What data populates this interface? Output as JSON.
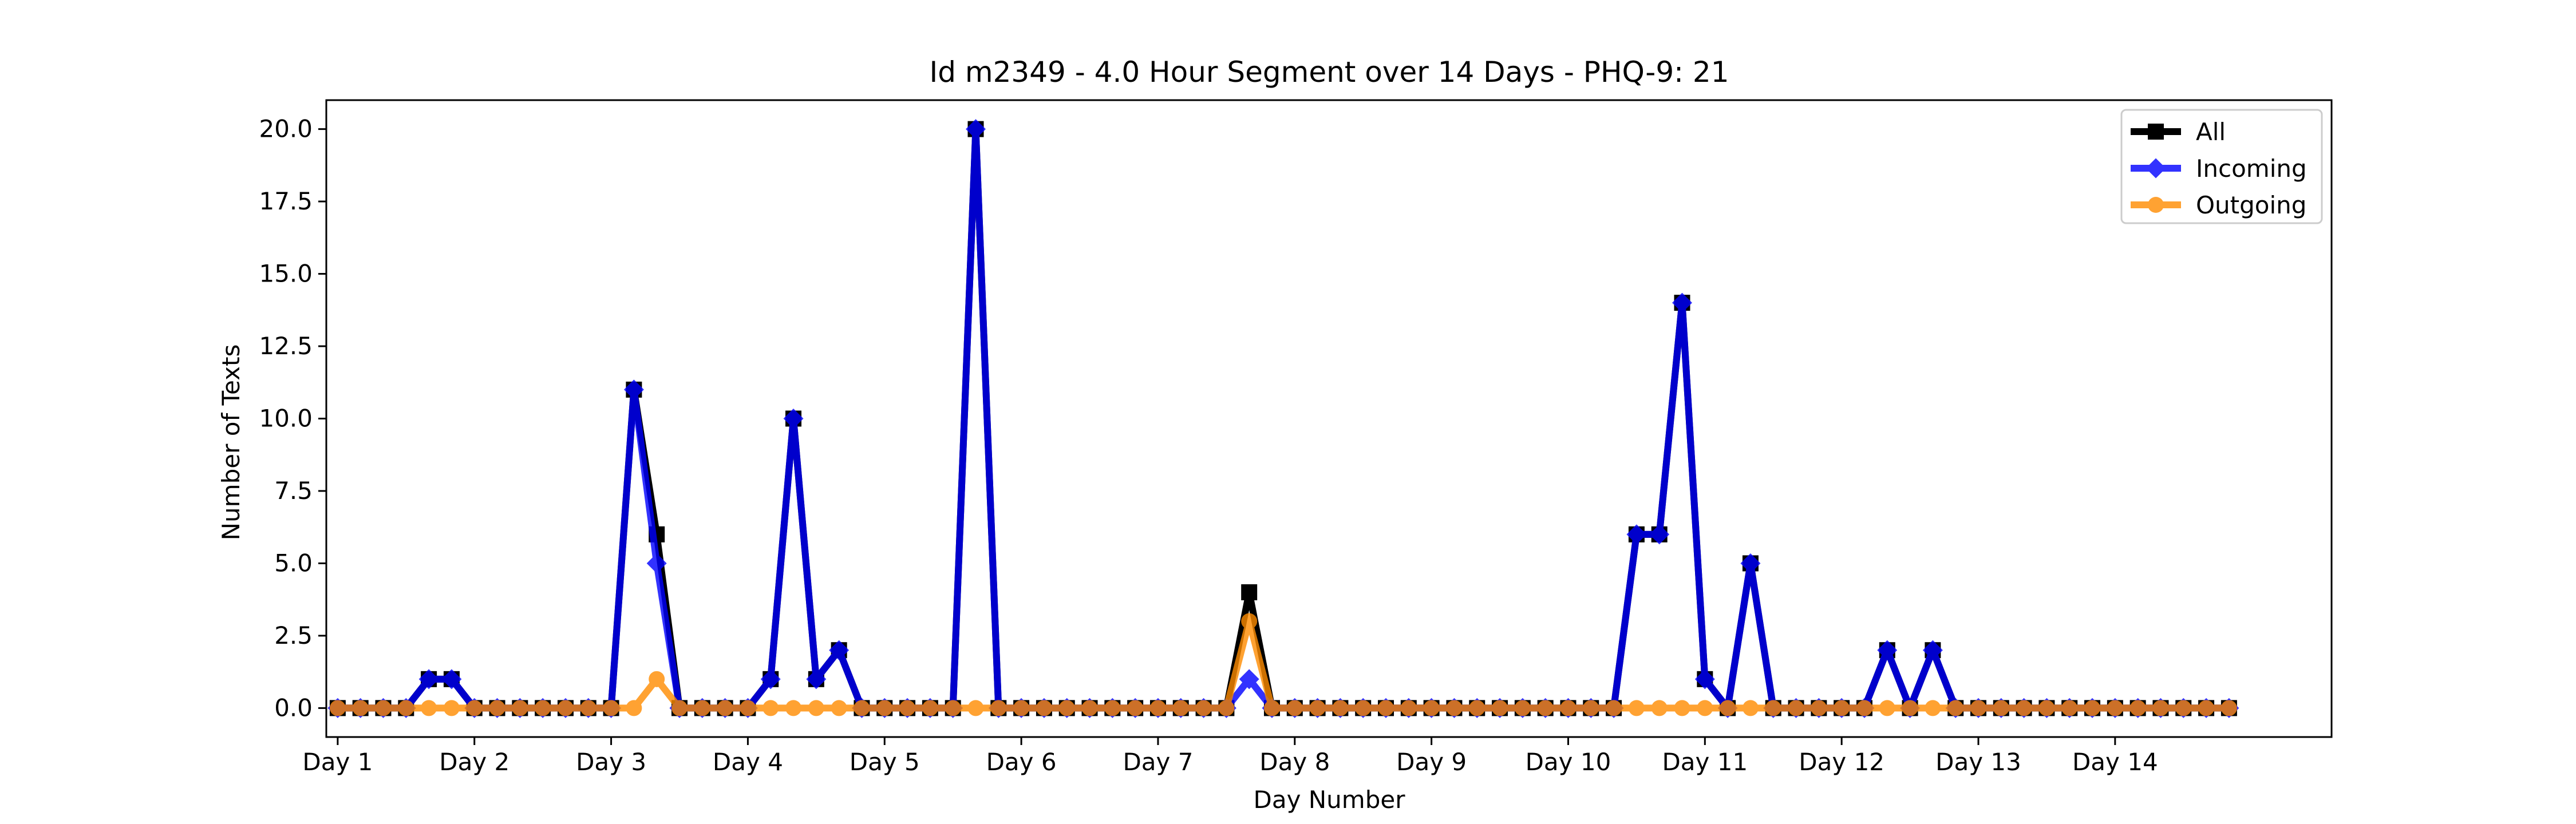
{
  "chart_data": {
    "type": "line",
    "title": "Id m2349 - 4.0 Hour Segment over 14 Days - PHQ-9: 21",
    "xlabel": "Day Number",
    "ylabel": "Number of Texts",
    "xlim": [
      -0.5,
      87.5
    ],
    "ylim": [
      -1.0,
      21.0
    ],
    "yticks": [
      "0.0",
      "2.5",
      "5.0",
      "7.5",
      "10.0",
      "12.5",
      "15.0",
      "17.5",
      "20.0"
    ],
    "ytick_values": [
      0,
      2.5,
      5,
      7.5,
      10,
      12.5,
      15,
      17.5,
      20
    ],
    "xtick_labels": [
      "Day 1",
      "Day 2",
      "Day 3",
      "Day 4",
      "Day 5",
      "Day 6",
      "Day 7",
      "Day 8",
      "Day 9",
      "Day 10",
      "Day 11",
      "Day 12",
      "Day 13",
      "Day 14"
    ],
    "xtick_values": [
      0,
      6,
      12,
      18,
      24,
      30,
      36,
      42,
      48,
      54,
      60,
      66,
      72,
      78
    ],
    "x": [
      0,
      1,
      2,
      3,
      4,
      5,
      6,
      7,
      8,
      9,
      10,
      11,
      12,
      13,
      14,
      15,
      16,
      17,
      18,
      19,
      20,
      21,
      22,
      23,
      24,
      25,
      26,
      27,
      28,
      29,
      30,
      31,
      32,
      33,
      34,
      35,
      36,
      37,
      38,
      39,
      40,
      41,
      42,
      43,
      44,
      45,
      46,
      47,
      48,
      49,
      50,
      51,
      52,
      53,
      54,
      55,
      56,
      57,
      58,
      59,
      60,
      61,
      62,
      63,
      64,
      65,
      66,
      67,
      68,
      69,
      70,
      71,
      72,
      73,
      74,
      75,
      76,
      77,
      78,
      79,
      80,
      81,
      82,
      83
    ],
    "grid": false,
    "legend_position": "top-right",
    "series": [
      {
        "name": "All",
        "color": "#000000",
        "marker": "square",
        "values": [
          0,
          0,
          0,
          0,
          1,
          1,
          0,
          0,
          0,
          0,
          0,
          0,
          0,
          11,
          6,
          0,
          0,
          0,
          0,
          1,
          10,
          1,
          2,
          0,
          0,
          0,
          0,
          0,
          20,
          0,
          0,
          0,
          0,
          0,
          0,
          0,
          0,
          0,
          0,
          0,
          4,
          0,
          0,
          0,
          0,
          0,
          0,
          0,
          0,
          0,
          0,
          0,
          0,
          0,
          0,
          0,
          0,
          6,
          6,
          14,
          1,
          0,
          5,
          0,
          0,
          0,
          0,
          0,
          2,
          0,
          2,
          0,
          0,
          0,
          0,
          0,
          0,
          0,
          0,
          0,
          0,
          0,
          0,
          0
        ]
      },
      {
        "name": "Incoming",
        "color": "#0000ff",
        "marker": "diamond",
        "values": [
          0,
          0,
          0,
          0,
          1,
          1,
          0,
          0,
          0,
          0,
          0,
          0,
          0,
          11,
          5,
          0,
          0,
          0,
          0,
          1,
          10,
          1,
          2,
          0,
          0,
          0,
          0,
          0,
          20,
          0,
          0,
          0,
          0,
          0,
          0,
          0,
          0,
          0,
          0,
          0,
          1,
          0,
          0,
          0,
          0,
          0,
          0,
          0,
          0,
          0,
          0,
          0,
          0,
          0,
          0,
          0,
          0,
          6,
          6,
          14,
          1,
          0,
          5,
          0,
          0,
          0,
          0,
          0,
          2,
          0,
          2,
          0,
          0,
          0,
          0,
          0,
          0,
          0,
          0,
          0,
          0,
          0,
          0,
          0
        ]
      },
      {
        "name": "Outgoing",
        "color": "#ff8c00",
        "marker": "circle",
        "values": [
          0,
          0,
          0,
          0,
          0,
          0,
          0,
          0,
          0,
          0,
          0,
          0,
          0,
          0,
          1,
          0,
          0,
          0,
          0,
          0,
          0,
          0,
          0,
          0,
          0,
          0,
          0,
          0,
          0,
          0,
          0,
          0,
          0,
          0,
          0,
          0,
          0,
          0,
          0,
          0,
          3,
          0,
          0,
          0,
          0,
          0,
          0,
          0,
          0,
          0,
          0,
          0,
          0,
          0,
          0,
          0,
          0,
          0,
          0,
          0,
          0,
          0,
          0,
          0,
          0,
          0,
          0,
          0,
          0,
          0,
          0,
          0,
          0,
          0,
          0,
          0,
          0,
          0,
          0,
          0,
          0,
          0,
          0,
          0
        ]
      }
    ]
  }
}
